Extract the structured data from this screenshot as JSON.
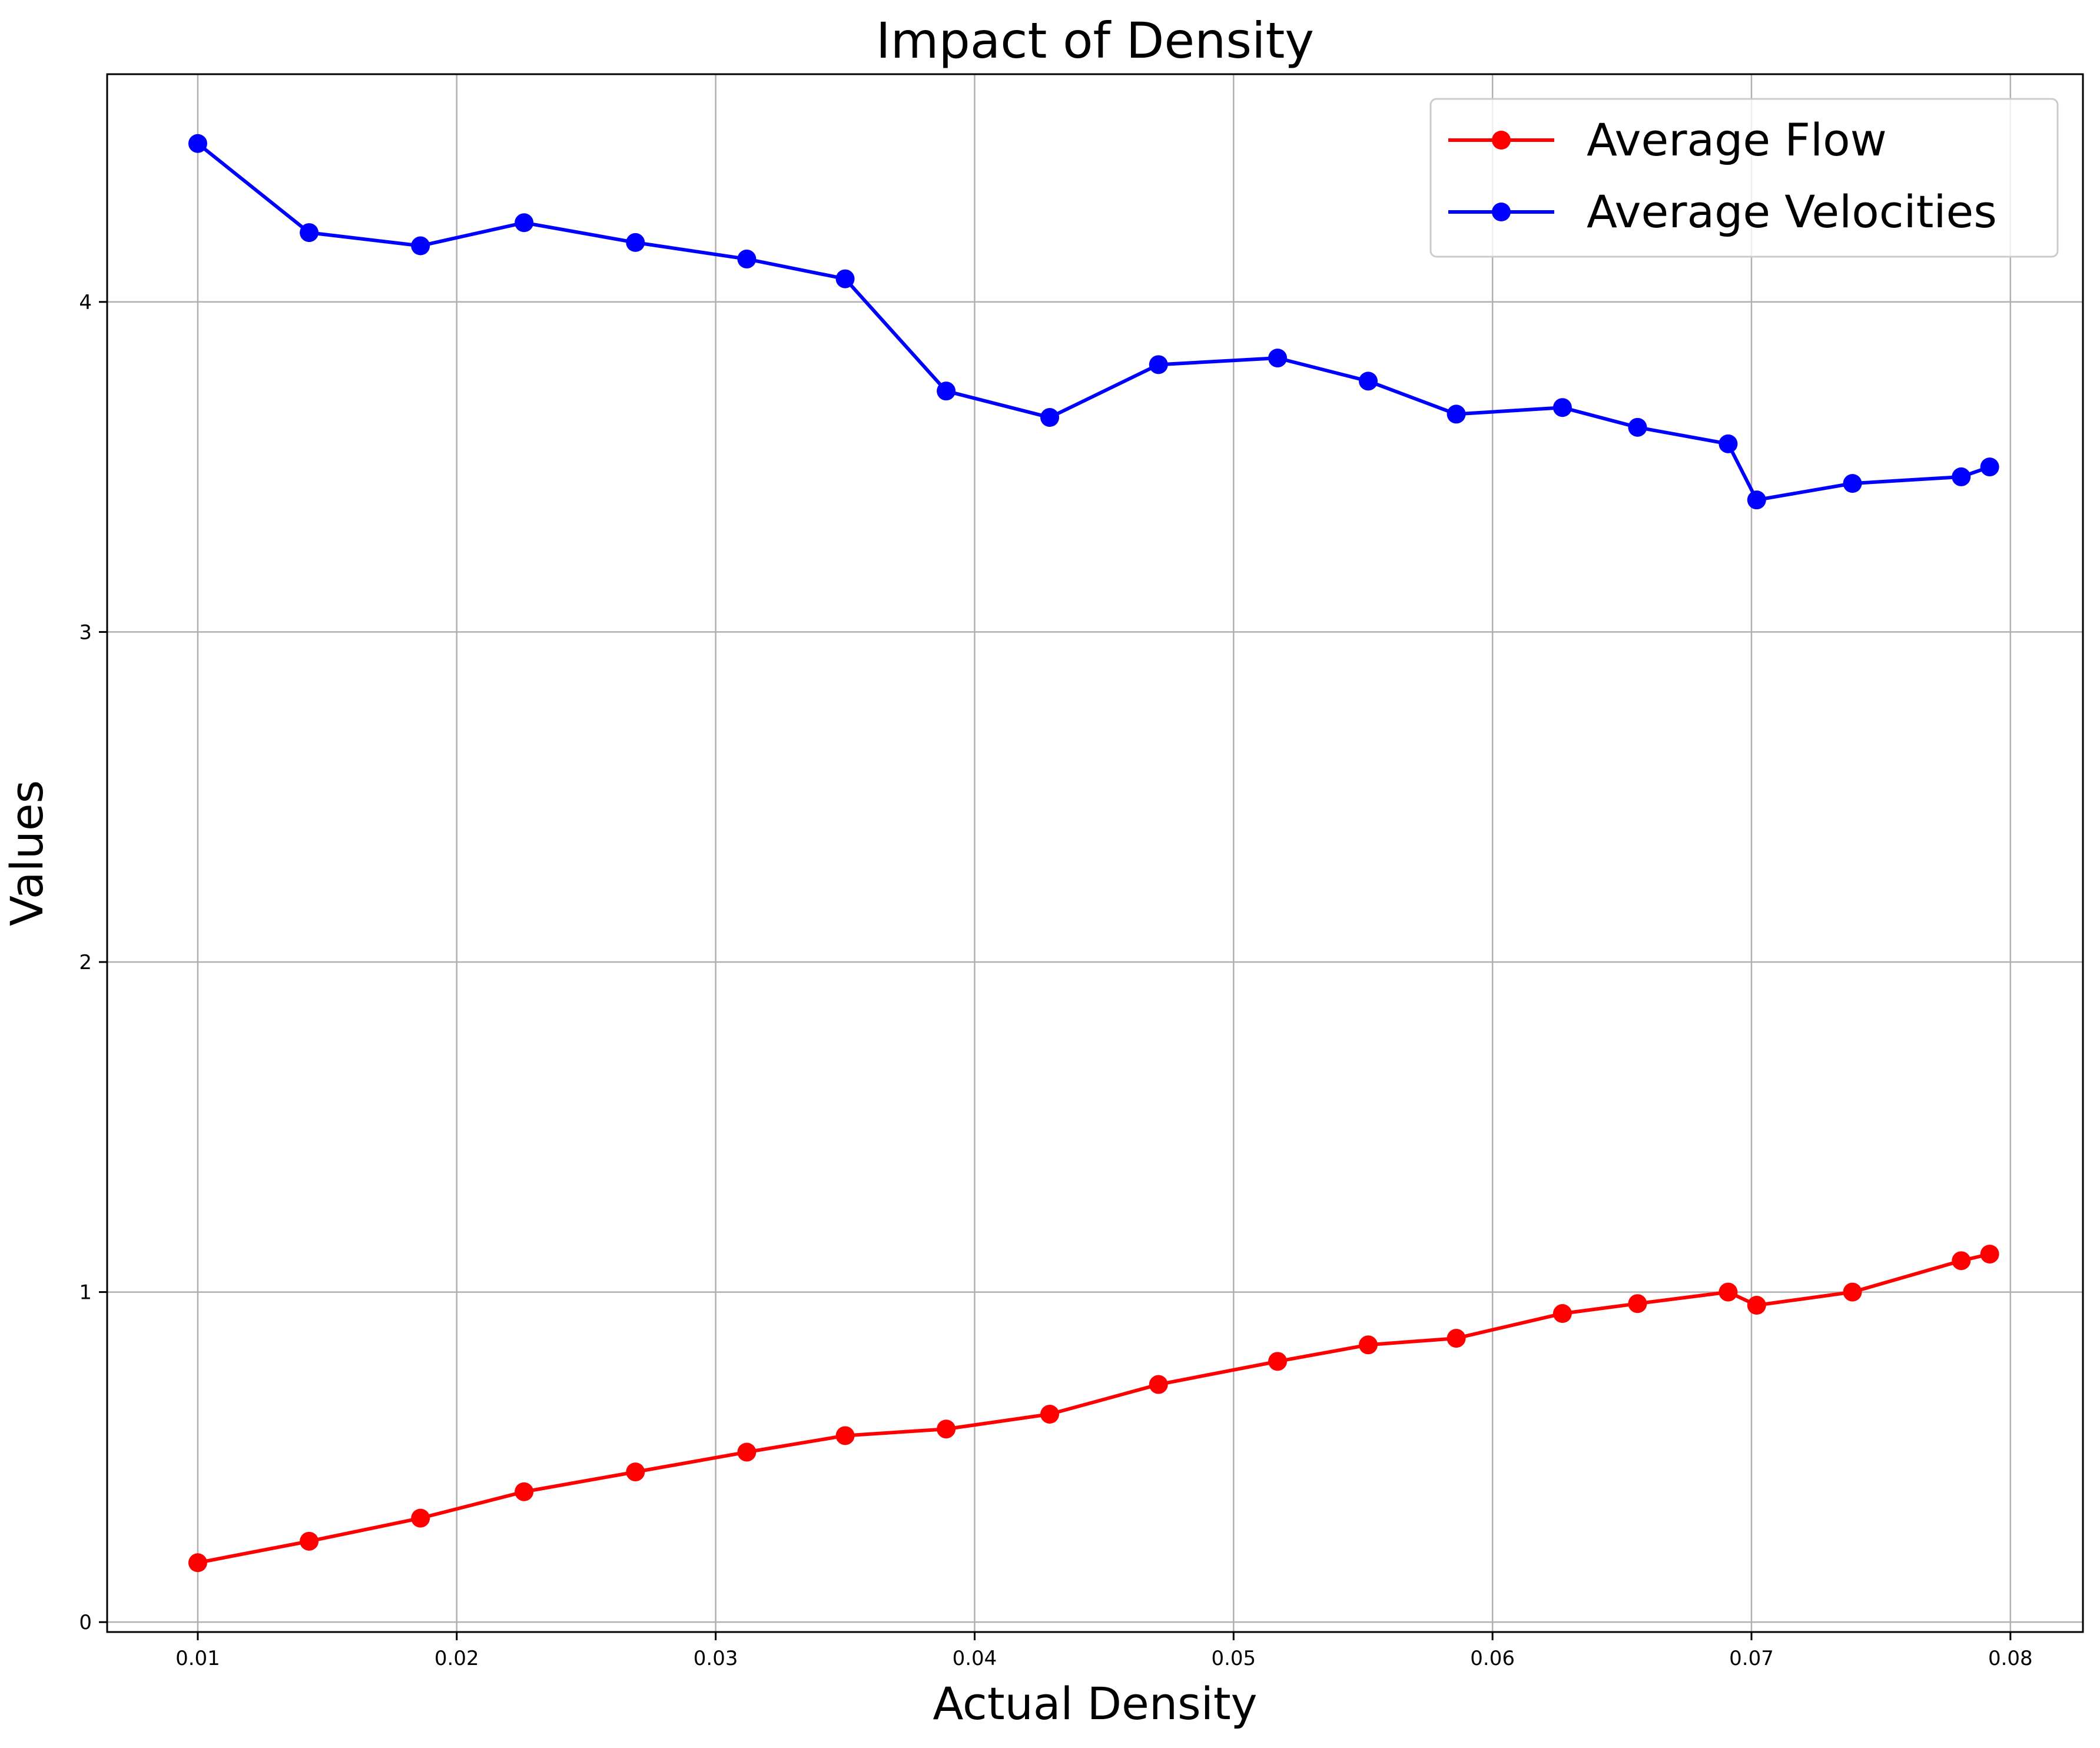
{
  "chart_data": {
    "type": "line",
    "title": "Impact of Density",
    "xlabel": "Actual Density",
    "ylabel": "Values",
    "xlim": [
      0.0065,
      0.0828
    ],
    "ylim": [
      -0.03,
      4.69
    ],
    "xticks": [
      0.01,
      0.02,
      0.03,
      0.04,
      0.05,
      0.06,
      0.07,
      0.08
    ],
    "xtick_labels": [
      "0.01",
      "0.02",
      "0.03",
      "0.04",
      "0.05",
      "0.06",
      "0.07",
      "0.08"
    ],
    "yticks": [
      0,
      1,
      2,
      3,
      4
    ],
    "ytick_labels": [
      "0",
      "1",
      "2",
      "3",
      "4"
    ],
    "grid": true,
    "legend_position": "top-right",
    "x": [
      0.01,
      0.0143,
      0.0186,
      0.0226,
      0.0269,
      0.0312,
      0.035,
      0.0389,
      0.0429,
      0.0471,
      0.0517,
      0.0552,
      0.0586,
      0.0627,
      0.0656,
      0.0691,
      0.0702,
      0.0739,
      0.0781,
      0.0792
    ],
    "series": [
      {
        "name": "Average Flow",
        "color": "#ff0000",
        "values": [
          0.18,
          0.245,
          0.315,
          0.395,
          0.455,
          0.515,
          0.565,
          0.585,
          0.63,
          0.72,
          0.79,
          0.84,
          0.86,
          0.935,
          0.965,
          1.0,
          0.96,
          1.0,
          1.095,
          1.115
        ]
      },
      {
        "name": "Average Velocities",
        "color": "#0000ff",
        "values": [
          4.48,
          4.21,
          4.17,
          4.24,
          4.18,
          4.13,
          4.07,
          3.73,
          3.65,
          3.81,
          3.83,
          3.76,
          3.66,
          3.68,
          3.62,
          3.57,
          3.4,
          3.45,
          3.47,
          3.5
        ]
      }
    ]
  }
}
